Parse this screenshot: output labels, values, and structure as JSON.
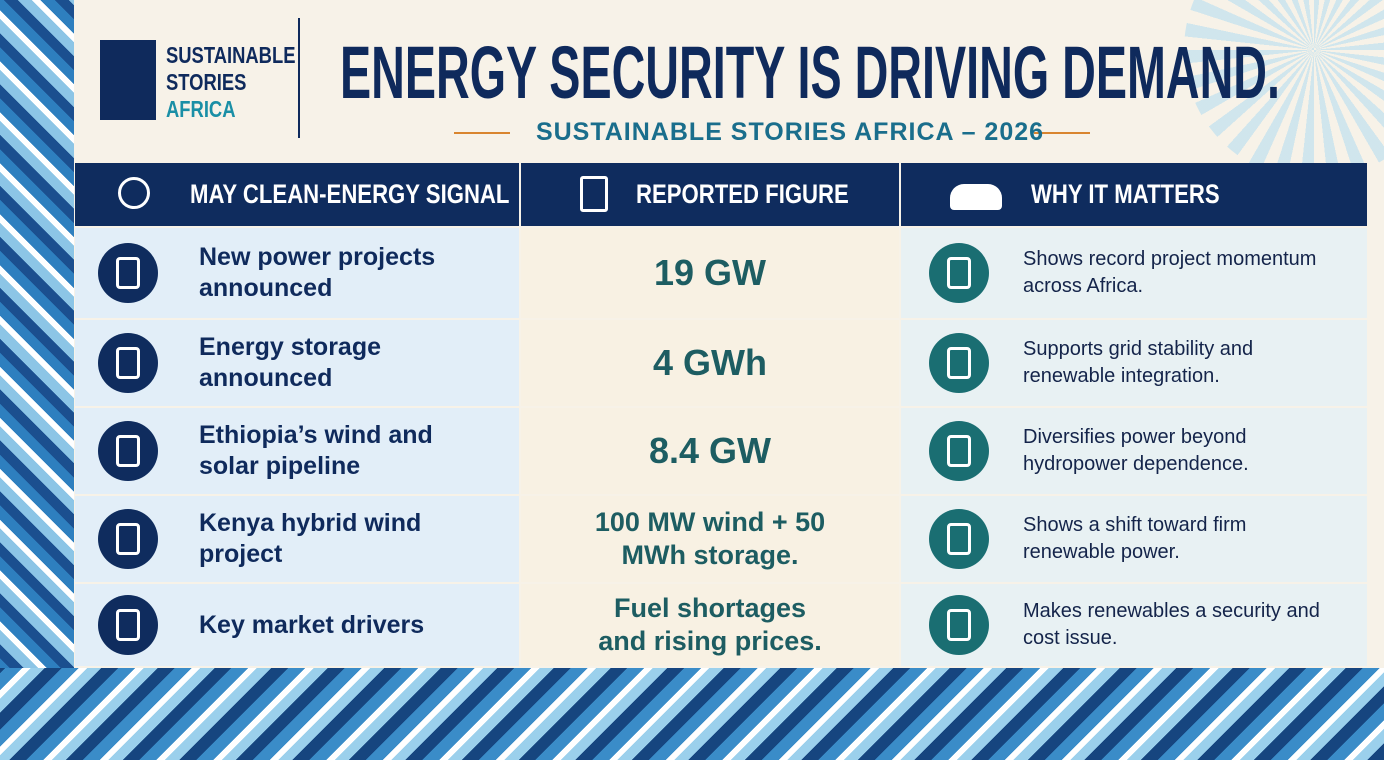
{
  "logo": {
    "line1": "SUSTAINABLE",
    "line2": "STORIES",
    "line3": "AFRICA"
  },
  "header": {
    "title": "ENERGY SECURITY IS DRIVING DEMAND.",
    "subtitle": "SUSTAINABLE STORIES AFRICA – 2026"
  },
  "table": {
    "columns": [
      "MAY CLEAN-ENERGY SIGNAL",
      "REPORTED FIGURE",
      "WHY IT MATTERS"
    ],
    "rows": [
      [
        "New power projects announced",
        "19 GW",
        "Shows record project momentum across Africa."
      ],
      [
        "Energy storage announced",
        "4 GWh",
        "Supports grid stability and renewable integration."
      ],
      [
        "Ethiopia’s wind and solar pipeline",
        "8.4 GW",
        "Diversifies power beyond hydropower dependence."
      ],
      [
        "Kenya hybrid wind project",
        "100 MW wind + 50 MWh storage.",
        "Shows a shift toward firm renewable power."
      ],
      [
        "Key market drivers",
        "Fuel shortages and rising prices.",
        "Makes renewables a security and cost issue."
      ]
    ]
  }
}
